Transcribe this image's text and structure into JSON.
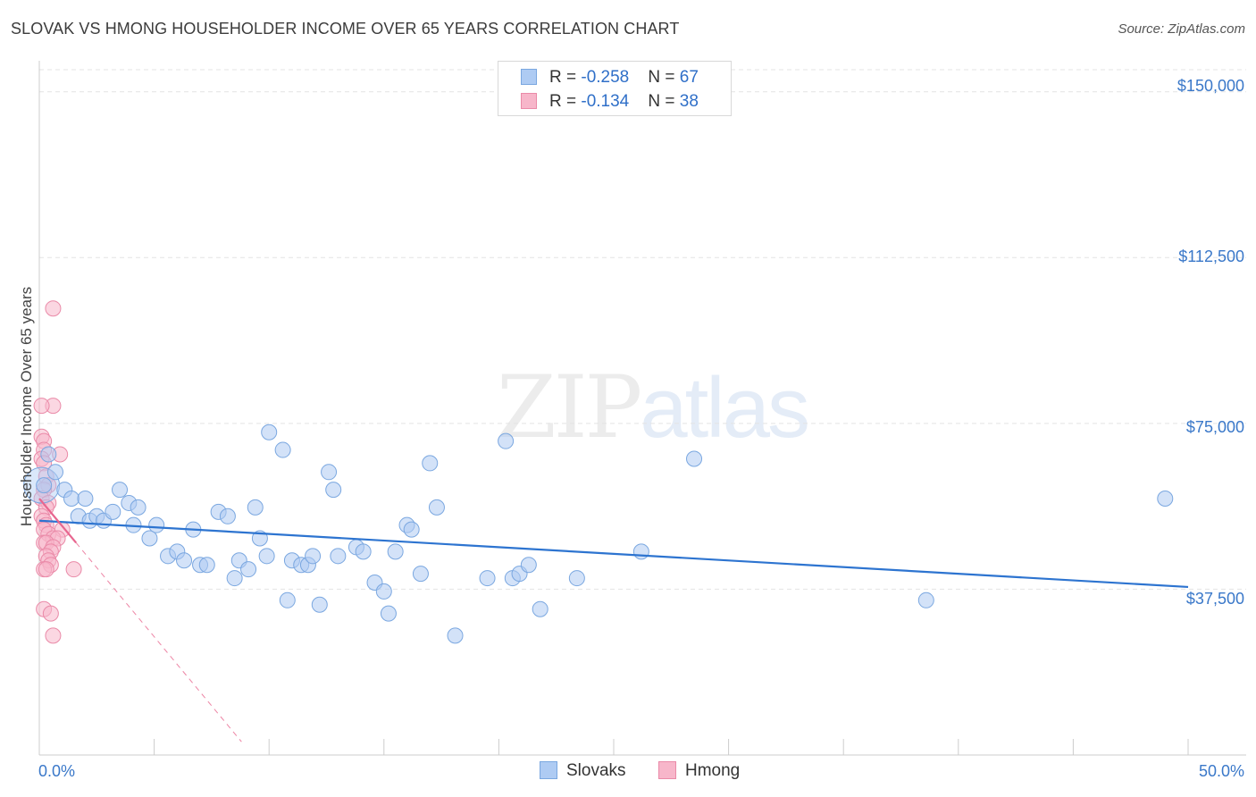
{
  "title": "SLOVAK VS HMONG HOUSEHOLDER INCOME OVER 65 YEARS CORRELATION CHART",
  "source": "Source: ZipAtlas.com",
  "watermark": {
    "zip": "ZIP",
    "atlas": "atlas"
  },
  "legend": {
    "rows": [
      {
        "r_label": "R = ",
        "r_value": "-0.258",
        "n_label": "N = ",
        "n_value": "67"
      },
      {
        "r_label": "R = ",
        "r_value": "-0.134",
        "n_label": "N = ",
        "n_value": "38"
      }
    ]
  },
  "colors": {
    "slovaks_fill": "#aecbf3",
    "slovaks_stroke": "#7aa7e0",
    "slovaks_line": "#2d74d0",
    "hmong_fill": "#f7b6ca",
    "hmong_stroke": "#ea8aa8",
    "hmong_line": "#e8668f",
    "grid": "#e3e3e3",
    "axis": "#cccccc",
    "tick_text": "#3a78c9"
  },
  "chart_data": {
    "type": "scatter",
    "title": "SLOVAK VS HMONG HOUSEHOLDER INCOME OVER 65 YEARS CORRELATION CHART",
    "xlabel": "",
    "ylabel": "Householder Income Over 65 years",
    "xlim": [
      0,
      50
    ],
    "ylim": [
      0,
      155000
    ],
    "x_tick_labels": [
      "0.0%",
      "50.0%"
    ],
    "y_ticks": [
      37500,
      75000,
      112500,
      150000
    ],
    "y_tick_labels": [
      "$37,500",
      "$75,000",
      "$112,500",
      "$150,000"
    ],
    "grid": true,
    "legend_position": "top-center and bottom",
    "series": [
      {
        "name": "Slovaks",
        "r": -0.258,
        "n": 67,
        "trend": {
          "x0": 0.0,
          "y0": 53000,
          "x1": 50.0,
          "y1": 38000
        },
        "points": [
          [
            0.2,
            61000
          ],
          [
            0.4,
            68000
          ],
          [
            0.7,
            64000
          ],
          [
            1.1,
            60000
          ],
          [
            1.4,
            58000
          ],
          [
            1.7,
            54000
          ],
          [
            2.0,
            58000
          ],
          [
            2.2,
            53000
          ],
          [
            2.5,
            54000
          ],
          [
            2.8,
            53000
          ],
          [
            3.2,
            55000
          ],
          [
            3.5,
            60000
          ],
          [
            3.9,
            57000
          ],
          [
            4.3,
            56000
          ],
          [
            4.1,
            52000
          ],
          [
            4.8,
            49000
          ],
          [
            5.1,
            52000
          ],
          [
            5.6,
            45000
          ],
          [
            6.0,
            46000
          ],
          [
            6.3,
            44000
          ],
          [
            6.7,
            51000
          ],
          [
            7.0,
            43000
          ],
          [
            7.3,
            43000
          ],
          [
            7.8,
            55000
          ],
          [
            8.2,
            54000
          ],
          [
            8.5,
            40000
          ],
          [
            8.7,
            44000
          ],
          [
            9.1,
            42000
          ],
          [
            9.4,
            56000
          ],
          [
            9.6,
            49000
          ],
          [
            9.9,
            45000
          ],
          [
            10.0,
            73000
          ],
          [
            10.6,
            69000
          ],
          [
            10.8,
            35000
          ],
          [
            11.0,
            44000
          ],
          [
            11.4,
            43000
          ],
          [
            11.7,
            43000
          ],
          [
            11.9,
            45000
          ],
          [
            12.2,
            34000
          ],
          [
            12.6,
            64000
          ],
          [
            12.8,
            60000
          ],
          [
            13.0,
            45000
          ],
          [
            13.8,
            47000
          ],
          [
            14.1,
            46000
          ],
          [
            14.6,
            39000
          ],
          [
            15.0,
            37000
          ],
          [
            15.2,
            32000
          ],
          [
            15.5,
            46000
          ],
          [
            16.0,
            52000
          ],
          [
            16.2,
            51000
          ],
          [
            16.6,
            41000
          ],
          [
            17.0,
            66000
          ],
          [
            17.3,
            56000
          ],
          [
            18.1,
            27000
          ],
          [
            19.5,
            40000
          ],
          [
            20.3,
            71000
          ],
          [
            20.6,
            40000
          ],
          [
            20.9,
            41000
          ],
          [
            21.3,
            43000
          ],
          [
            21.8,
            33000
          ],
          [
            23.4,
            40000
          ],
          [
            26.2,
            46000
          ],
          [
            28.5,
            67000
          ],
          [
            38.6,
            35000
          ],
          [
            49.0,
            58000
          ]
        ]
      },
      {
        "name": "Hmong",
        "r": -0.134,
        "n": 38,
        "trend": {
          "x0": 0.0,
          "y0": 58000,
          "x1": 1.6,
          "y1": 48000
        },
        "trend_ext": {
          "x0": 1.6,
          "y0": 48000,
          "x1": 8.8,
          "y1": 3000
        },
        "points": [
          [
            0.6,
            101000
          ],
          [
            0.6,
            79000
          ],
          [
            0.1,
            79000
          ],
          [
            0.1,
            72000
          ],
          [
            0.2,
            71000
          ],
          [
            0.2,
            69000
          ],
          [
            0.9,
            68000
          ],
          [
            0.1,
            67000
          ],
          [
            0.2,
            66000
          ],
          [
            0.3,
            63000
          ],
          [
            0.4,
            61000
          ],
          [
            0.2,
            60000
          ],
          [
            0.1,
            58000
          ],
          [
            0.4,
            57000
          ],
          [
            0.3,
            56000
          ],
          [
            0.1,
            54000
          ],
          [
            0.2,
            53000
          ],
          [
            0.3,
            52000
          ],
          [
            1.0,
            51000
          ],
          [
            0.2,
            51000
          ],
          [
            0.4,
            50000
          ],
          [
            0.6,
            49000
          ],
          [
            0.8,
            49000
          ],
          [
            0.2,
            48000
          ],
          [
            0.3,
            48000
          ],
          [
            0.6,
            47000
          ],
          [
            0.5,
            46000
          ],
          [
            0.3,
            45000
          ],
          [
            0.4,
            44000
          ],
          [
            0.5,
            43000
          ],
          [
            0.2,
            42000
          ],
          [
            0.3,
            42000
          ],
          [
            1.5,
            42000
          ],
          [
            0.2,
            33000
          ],
          [
            0.5,
            32000
          ],
          [
            0.6,
            27000
          ]
        ]
      }
    ]
  },
  "bottom_legend": {
    "items": [
      {
        "label": "Slovaks"
      },
      {
        "label": "Hmong"
      }
    ]
  }
}
